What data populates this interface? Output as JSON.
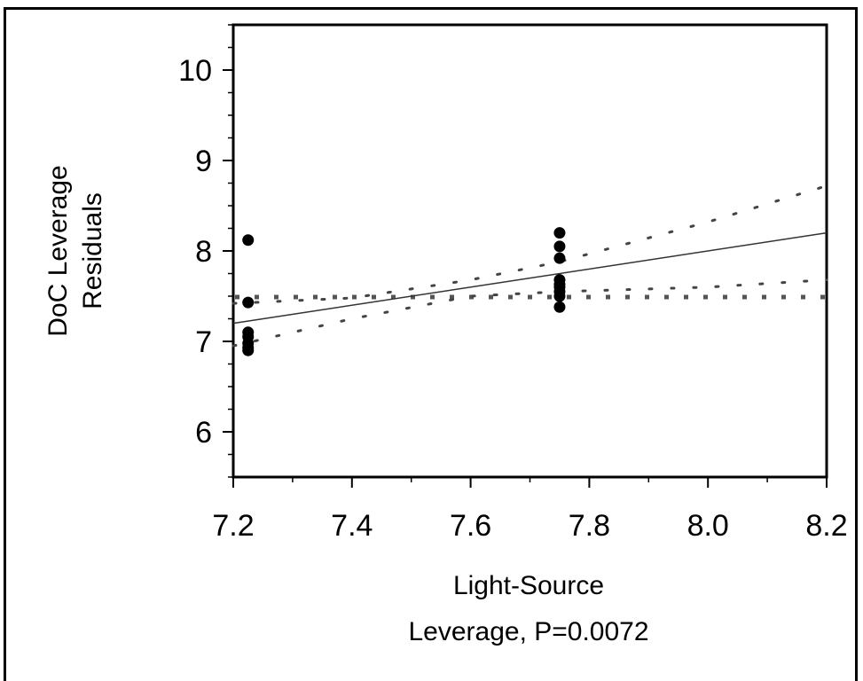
{
  "chart_data": {
    "type": "scatter",
    "title": "",
    "xlabel_lines": [
      "Light-Source",
      "Leverage, P=0.0072"
    ],
    "ylabel_lines": [
      "DoC Leverage",
      "Residuals"
    ],
    "xlim": [
      7.2,
      8.2
    ],
    "ylim": [
      5.5,
      10.5
    ],
    "x_ticks": [
      7.2,
      7.4,
      7.6,
      7.8,
      8.0,
      8.2
    ],
    "x_tick_labels": [
      "7.2",
      "7.4",
      "7.6",
      "7.8",
      "8.0",
      "8.2"
    ],
    "y_ticks": [
      6,
      7,
      8,
      9,
      10
    ],
    "y_tick_labels": [
      "6",
      "7",
      "8",
      "9",
      "10"
    ],
    "grid": false,
    "points": [
      {
        "x": 7.225,
        "y": 8.12
      },
      {
        "x": 7.225,
        "y": 7.43
      },
      {
        "x": 7.225,
        "y": 7.1
      },
      {
        "x": 7.225,
        "y": 7.05
      },
      {
        "x": 7.225,
        "y": 6.98
      },
      {
        "x": 7.225,
        "y": 6.93
      },
      {
        "x": 7.225,
        "y": 6.9
      },
      {
        "x": 7.75,
        "y": 8.2
      },
      {
        "x": 7.75,
        "y": 8.05
      },
      {
        "x": 7.75,
        "y": 7.92
      },
      {
        "x": 7.75,
        "y": 7.68
      },
      {
        "x": 7.75,
        "y": 7.63
      },
      {
        "x": 7.75,
        "y": 7.6
      },
      {
        "x": 7.75,
        "y": 7.55
      },
      {
        "x": 7.75,
        "y": 7.5
      },
      {
        "x": 7.75,
        "y": 7.38
      }
    ],
    "fit_line": {
      "x": [
        7.2,
        8.2
      ],
      "y": [
        7.2,
        8.2
      ]
    },
    "confidence_upper": {
      "x": [
        7.2,
        7.4,
        7.6,
        7.75,
        8.0,
        8.2
      ],
      "y": [
        7.42,
        7.48,
        7.68,
        7.88,
        8.32,
        8.72
      ]
    },
    "confidence_lower": {
      "x": [
        7.2,
        7.4,
        7.6,
        7.75,
        8.0,
        8.2
      ],
      "y": [
        6.95,
        7.25,
        7.5,
        7.55,
        7.6,
        7.68
      ]
    },
    "mean_line_y": 7.49
  }
}
